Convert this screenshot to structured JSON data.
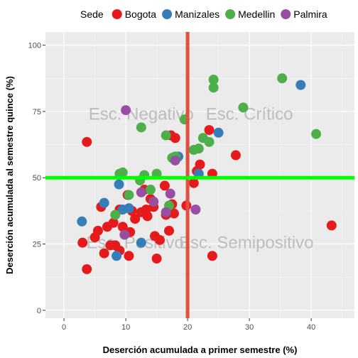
{
  "chart_data": {
    "type": "scatter",
    "xlabel": "Deserción acumulada a primer semestre (%)",
    "ylabel": "Deserción acumulada al semestre quince (%)",
    "xlim": [
      -3,
      47
    ],
    "ylim": [
      -3,
      105
    ],
    "x_ticks": [
      0,
      10,
      20,
      30,
      40
    ],
    "y_ticks": [
      0,
      25,
      50,
      75,
      100
    ],
    "grid": true,
    "legend": {
      "position": "top",
      "title": "Sede",
      "entries": [
        "Bogota",
        "Manizales",
        "Medellin",
        "Palmira"
      ]
    },
    "reference_lines": [
      {
        "orientation": "vertical",
        "value": 20,
        "color": "#e05040"
      },
      {
        "orientation": "horizontal",
        "value": 50,
        "color": "#00ff00"
      }
    ],
    "annotations": [
      {
        "text": "Esc. Negativo",
        "x": 12.5,
        "y": 74
      },
      {
        "text": "Esc. Crítico",
        "x": 30,
        "y": 74
      },
      {
        "text": "Esc. Positivo",
        "x": 11.5,
        "y": 25.5
      },
      {
        "text": "Esc. Semipositivo",
        "x": 29.5,
        "y": 25.5
      }
    ],
    "colors": {
      "Bogota": "#e41a1c",
      "Manizales": "#377eb8",
      "Medellin": "#4daf4a",
      "Palmira": "#984ea3"
    },
    "series": [
      {
        "name": "Bogota",
        "points": [
          [
            3.0,
            25.5
          ],
          [
            3.7,
            63.5
          ],
          [
            3.7,
            15.5
          ],
          [
            5.0,
            27.5
          ],
          [
            5.5,
            30
          ],
          [
            6.0,
            39
          ],
          [
            6.5,
            21.5
          ],
          [
            7.0,
            31.5
          ],
          [
            7.5,
            24.5
          ],
          [
            8.0,
            33
          ],
          [
            8.3,
            24.5
          ],
          [
            9.0,
            38
          ],
          [
            9.0,
            22.5
          ],
          [
            9.5,
            31.5
          ],
          [
            10.3,
            43.5
          ],
          [
            10.5,
            20.5
          ],
          [
            10.7,
            29.5
          ],
          [
            11.0,
            37.5
          ],
          [
            11.5,
            34.5
          ],
          [
            12.5,
            37
          ],
          [
            13.0,
            45.5
          ],
          [
            13.3,
            38
          ],
          [
            13.5,
            35.5
          ],
          [
            14.0,
            42
          ],
          [
            14.5,
            39
          ],
          [
            14.7,
            28
          ],
          [
            15.0,
            19.5
          ],
          [
            15.5,
            26.5
          ],
          [
            16.3,
            47
          ],
          [
            16.5,
            36
          ],
          [
            17.0,
            30
          ],
          [
            17.3,
            66
          ],
          [
            17.5,
            40
          ],
          [
            17.8,
            36.5
          ],
          [
            18.0,
            65
          ],
          [
            19.8,
            39.5
          ],
          [
            21.0,
            48
          ],
          [
            21.5,
            52.5
          ],
          [
            22.0,
            55
          ],
          [
            23.5,
            68
          ],
          [
            24.0,
            51.5
          ],
          [
            24.0,
            20.5
          ],
          [
            27.8,
            58.5
          ],
          [
            43.3,
            32
          ]
        ]
      },
      {
        "name": "Manizales",
        "points": [
          [
            2.9,
            33.5
          ],
          [
            6.5,
            40.5
          ],
          [
            8.5,
            20.5
          ],
          [
            8.9,
            47.5
          ],
          [
            9.5,
            38
          ],
          [
            10.5,
            38.5
          ],
          [
            12.5,
            25.5
          ],
          [
            18.5,
            58
          ],
          [
            21.8,
            51.5
          ],
          [
            25.0,
            67
          ],
          [
            38.3,
            85
          ]
        ]
      },
      {
        "name": "Medellin",
        "points": [
          [
            8.3,
            36
          ],
          [
            9.0,
            51.5
          ],
          [
            9.5,
            52
          ],
          [
            10.5,
            43.5
          ],
          [
            12.3,
            49
          ],
          [
            12.5,
            69
          ],
          [
            13.0,
            51
          ],
          [
            14.0,
            45.5
          ],
          [
            15.0,
            51.5
          ],
          [
            16.5,
            66
          ],
          [
            17.5,
            57.5
          ],
          [
            18.0,
            58
          ],
          [
            19.5,
            72
          ],
          [
            21.0,
            60.5
          ],
          [
            21.8,
            61
          ],
          [
            22.5,
            65
          ],
          [
            23.5,
            63.5
          ],
          [
            24.2,
            87
          ],
          [
            24.2,
            84
          ],
          [
            29.0,
            76.5
          ],
          [
            35.3,
            87.5
          ],
          [
            40.8,
            66.5
          ],
          [
            17.0,
            39.5
          ]
        ]
      },
      {
        "name": "Palmira",
        "points": [
          [
            10.0,
            75.5
          ],
          [
            9.8,
            28.5
          ],
          [
            12.5,
            44.5
          ],
          [
            14.5,
            41
          ],
          [
            16.5,
            37
          ],
          [
            17.2,
            44
          ],
          [
            18.0,
            56.5
          ],
          [
            21.3,
            38
          ]
        ]
      }
    ]
  }
}
